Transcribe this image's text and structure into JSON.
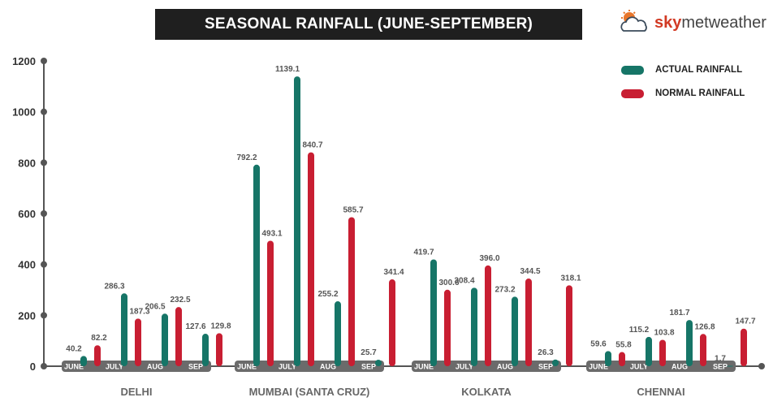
{
  "brand": {
    "sky": "sky",
    "rest": "metweather",
    "logo_icon": "cloud-sun-icon"
  },
  "colors": {
    "actual": "#167567",
    "normal": "#c81e32",
    "axis": "#555555",
    "band": "#6b6b6b"
  },
  "chart_data": {
    "type": "bar",
    "title": "SEASONAL RAINFALL (JUNE-SEPTEMBER)",
    "ylim": [
      0,
      1200
    ],
    "yticks": [
      0,
      200,
      400,
      600,
      800,
      1000,
      1200
    ],
    "legend": [
      "ACTUAL RAINFALL",
      "NORMAL RAINFALL"
    ],
    "groups": [
      {
        "city": "DELHI",
        "months": [
          "JUNE",
          "JULY",
          "AUG",
          "SEP"
        ],
        "actual": [
          40.2,
          286.3,
          206.5,
          127.6
        ],
        "normal": [
          82.2,
          187.3,
          232.5,
          129.8
        ]
      },
      {
        "city": "MUMBAI (SANTA CRUZ)",
        "months": [
          "JUNE",
          "JULY",
          "AUG",
          "SEP"
        ],
        "actual": [
          792.2,
          1139.1,
          255.2,
          25.7
        ],
        "normal": [
          493.1,
          840.7,
          585.7,
          341.4
        ]
      },
      {
        "city": "KOLKATA",
        "months": [
          "JUNE",
          "JULY",
          "AUG",
          "SEP"
        ],
        "actual": [
          419.7,
          308.4,
          273.2,
          26.3
        ],
        "normal": [
          300.6,
          396.0,
          344.5,
          318.1
        ]
      },
      {
        "city": "CHENNAI",
        "months": [
          "JUNE",
          "JULY",
          "AUG",
          "SEP"
        ],
        "actual": [
          59.6,
          115.2,
          181.7,
          1.7
        ],
        "normal": [
          55.8,
          103.8,
          126.8,
          147.7
        ]
      }
    ]
  }
}
